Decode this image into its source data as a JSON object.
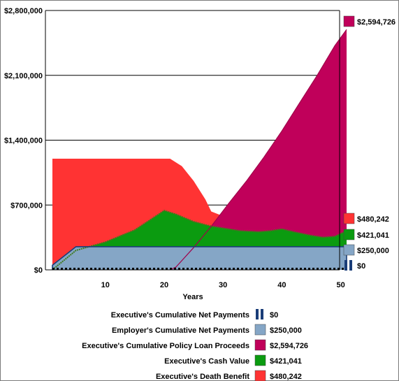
{
  "chart_data": {
    "type": "area",
    "title": "",
    "xlabel": "Years",
    "ylabel": "",
    "xlim": [
      1,
      51
    ],
    "ylim": [
      0,
      2800000
    ],
    "x_ticks": [
      10,
      20,
      30,
      40,
      50
    ],
    "x_tick_labels": [
      "10",
      "20",
      "30",
      "40",
      "50"
    ],
    "y_ticks": [
      0,
      700000,
      1400000,
      2100000,
      2800000
    ],
    "y_tick_labels": [
      "$0",
      "$700,000",
      "$1,400,000",
      "$2,100,000",
      "$2,800,000"
    ],
    "grid": "horizontal",
    "legend_position": "bottom",
    "series": [
      {
        "name": "Executive's Death Benefit",
        "color": "#ff3333",
        "final_label": "$480,242",
        "x": [
          1,
          5,
          10,
          15,
          20,
          21,
          23,
          25,
          27,
          28,
          30,
          32,
          35,
          38,
          40,
          42,
          45,
          47,
          50,
          51
        ],
        "values": [
          1200000,
          1200000,
          1200000,
          1200000,
          1200000,
          1200000,
          1120000,
          960000,
          760000,
          630000,
          580000,
          510000,
          500000,
          530000,
          590000,
          570000,
          570000,
          580000,
          500000,
          480242
        ]
      },
      {
        "name": "Executive's Cumulative Policy Loan Proceeds",
        "color": "#c0005a",
        "final_label": "$2,594,726",
        "x": [
          1,
          20,
          21,
          22,
          25,
          28,
          31,
          34,
          37,
          40,
          43,
          46,
          49,
          51
        ],
        "values": [
          0,
          0,
          0,
          30000,
          240000,
          470000,
          720000,
          960000,
          1220000,
          1500000,
          1800000,
          2100000,
          2420000,
          2594726
        ]
      },
      {
        "name": "Executive's Cash Value",
        "color": "#0b9b10",
        "final_label": "$421,041",
        "x": [
          1,
          5,
          10,
          15,
          20,
          22,
          25,
          28,
          30,
          33,
          36,
          38,
          40,
          42,
          45,
          47,
          49,
          51
        ],
        "values": [
          0,
          210000,
          300000,
          430000,
          640000,
          600000,
          520000,
          470000,
          450000,
          420000,
          410000,
          420000,
          440000,
          410000,
          370000,
          350000,
          360000,
          421041
        ]
      },
      {
        "name": "Employer's Cumulative Net Payments",
        "color": "#85a6c6",
        "final_label": "$250,000",
        "x": [
          1,
          5,
          51
        ],
        "values": [
          50000,
          250000,
          250000
        ]
      },
      {
        "name": "Executive's Cumulative Net Payments",
        "color": "#1a3d78",
        "final_label": "$0",
        "x": [
          1,
          51
        ],
        "values": [
          0,
          0
        ]
      }
    ],
    "legend_order": [
      "Executive's Cumulative Net Payments",
      "Employer's Cumulative Net Payments",
      "Executive's Cumulative Policy Loan Proceeds",
      "Executive's Cash Value",
      "Executive's Death Benefit"
    ],
    "side_labels_order": [
      "Executive's Death Benefit",
      "Executive's Cash Value",
      "Employer's Cumulative Net Payments",
      "Executive's Cumulative Net Payments"
    ]
  }
}
